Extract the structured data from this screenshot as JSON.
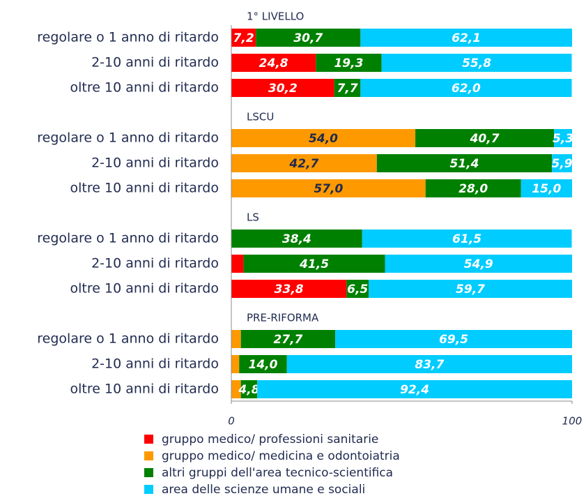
{
  "chart_data": {
    "type": "stacked-barh",
    "groups": [
      {
        "label": "1° LIVELLO",
        "categories": [
          "regolare o 1 anno di ritardo",
          "2-10 anni di ritardo",
          "oltre 10 anni di ritardo"
        ]
      },
      {
        "label": "LSCU",
        "categories": [
          "regolare o 1 anno di ritardo",
          "2-10 anni di ritardo",
          "oltre 10 anni di ritardo"
        ]
      },
      {
        "label": "LS",
        "categories": [
          "regolare o 1 anno di ritardo",
          "2-10 anni di ritardo",
          "oltre 10 anni di ritardo"
        ]
      },
      {
        "label": "PRE-RIFORMA",
        "categories": [
          "regolare o 1 anno di ritardo",
          "2-10 anni di ritardo",
          "oltre 10 anni di ritardo"
        ]
      }
    ],
    "series": [
      {
        "name": "gruppo medico/ professioni sanitarie",
        "color": "#ff0000",
        "label_color": "#ffffff",
        "values": [
          [
            7.2,
            24.8,
            30.2
          ],
          [
            null,
            null,
            null
          ],
          [
            null,
            3.6,
            33.8
          ],
          [
            null,
            null,
            null
          ]
        ],
        "value_labels": [
          [
            "7,2",
            "24,8",
            "30,2"
          ],
          [
            null,
            null,
            null
          ],
          [
            null,
            null,
            "33,8"
          ],
          [
            null,
            null,
            null
          ]
        ]
      },
      {
        "name": "gruppo medico/ medicina e odontoiatria",
        "color": "#ff9900",
        "label_color": "#1f2a4f",
        "values": [
          [
            null,
            null,
            null
          ],
          [
            54.0,
            42.7,
            57.0
          ],
          [
            null,
            null,
            null
          ],
          [
            2.8,
            2.3,
            2.8
          ]
        ],
        "value_labels": [
          [
            null,
            null,
            null
          ],
          [
            "54,0",
            "42,7",
            "57,0"
          ],
          [
            null,
            null,
            null
          ],
          [
            null,
            null,
            null
          ]
        ]
      },
      {
        "name": "altri gruppi dell'area tecnico-scientifica",
        "color": "#008000",
        "label_color": "#ffffff",
        "values": [
          [
            30.7,
            19.3,
            7.7
          ],
          [
            40.7,
            51.4,
            28.0
          ],
          [
            38.4,
            41.5,
            6.5
          ],
          [
            27.7,
            14.0,
            4.8
          ]
        ],
        "value_labels": [
          [
            "30,7",
            "19,3",
            "7,7"
          ],
          [
            "40,7",
            "51,4",
            "28,0"
          ],
          [
            "38,4",
            "41,5",
            "6,5"
          ],
          [
            "27,7",
            "14,0",
            "4,8"
          ]
        ]
      },
      {
        "name": "area delle scienze umane e sociali",
        "color": "#00ccff",
        "label_color": "#ffffff",
        "values": [
          [
            62.1,
            55.8,
            62.0
          ],
          [
            5.3,
            5.9,
            15.0
          ],
          [
            61.5,
            54.9,
            59.7
          ],
          [
            69.5,
            83.7,
            92.4
          ]
        ],
        "value_labels": [
          [
            "62,1",
            "55,8",
            "62,0"
          ],
          [
            "5,3",
            "5,9",
            "15,0"
          ],
          [
            "61,5",
            "54,9",
            "59,7"
          ],
          [
            "69,5",
            "83,7",
            "92,4"
          ]
        ]
      }
    ],
    "xlim": [
      0,
      100
    ],
    "xticks": [
      0,
      100
    ]
  }
}
